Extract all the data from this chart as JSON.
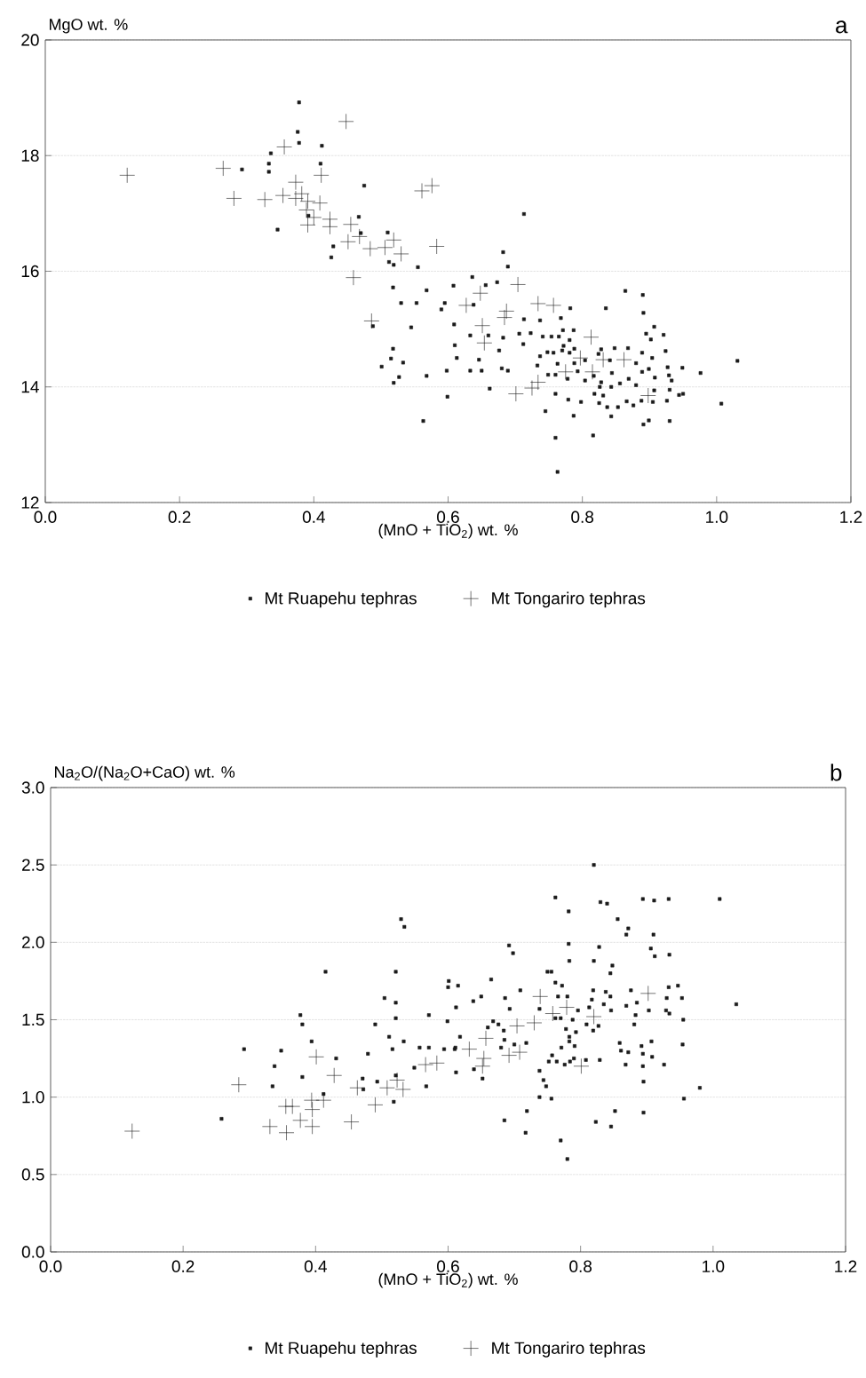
{
  "chart_data": [
    {
      "type": "scatter",
      "title": "a",
      "xlabel": "(MnO + TiO$_{2}$) wt. %",
      "ylabel": "MgO wt. %",
      "xlim": [
        0,
        1.2
      ],
      "ylim": [
        12,
        20
      ],
      "xticks": [
        {
          "value": 0,
          "label": "0.0"
        },
        {
          "value": 0.2,
          "label": "0.2"
        },
        {
          "value": 0.4,
          "label": "0.4"
        },
        {
          "value": 0.6,
          "label": "0.6"
        },
        {
          "value": 0.8,
          "label": "0.8"
        },
        {
          "value": 1.0,
          "label": "1.0"
        },
        {
          "value": 1.2,
          "label": "1.2"
        }
      ],
      "yticks": [
        12,
        14,
        16,
        18,
        20
      ],
      "grid": "y",
      "legend": "bottom",
      "series": [
        {
          "name": "Mt Ruapehu tephras",
          "color": "#1a1a1a",
          "marker": "square",
          "x": [
            0.378,
            0.376,
            0.378,
            0.412,
            0.336,
            0.333,
            0.41,
            0.293,
            0.333,
            0.475,
            0.392,
            0.346,
            0.467,
            0.47,
            0.51,
            0.429,
            0.426,
            0.512,
            0.519,
            0.555,
            0.518,
            0.568,
            0.53,
            0.553,
            0.59,
            0.488,
            0.545,
            0.518,
            0.515,
            0.533,
            0.501,
            0.527,
            0.568,
            0.519,
            0.563,
            0.713,
            0.682,
            0.689,
            0.636,
            0.608,
            0.656,
            0.673,
            0.595,
            0.638,
            0.864,
            0.89,
            0.891,
            0.835,
            0.782,
            0.609,
            0.682,
            0.713,
            0.737,
            0.768,
            0.771,
            0.787,
            0.706,
            0.723,
            0.712,
            0.741,
            0.754,
            0.765,
            0.781,
            0.633,
            0.66,
            0.61,
            0.613,
            0.646,
            0.676,
            0.633,
            0.65,
            0.598,
            0.68,
            0.689,
            0.662,
            0.599,
            0.737,
            0.748,
            0.757,
            0.77,
            0.772,
            0.781,
            0.788,
            0.733,
            0.749,
            0.76,
            0.763,
            0.788,
            0.793,
            0.804,
            0.778,
            0.804,
            0.817,
            0.76,
            0.779,
            0.798,
            0.745,
            0.787,
            0.76,
            0.816,
            0.818,
            0.826,
            0.828,
            0.831,
            0.825,
            0.837,
            0.843,
            0.843,
            0.853,
            0.856,
            0.844,
            0.824,
            0.828,
            0.848,
            0.841,
            0.868,
            0.88,
            0.869,
            0.88,
            0.866,
            0.876,
            0.888,
            0.889,
            0.899,
            0.889,
            0.904,
            0.895,
            0.902,
            0.907,
            0.921,
            0.924,
            0.908,
            0.907,
            0.905,
            0.926,
            0.927,
            0.929,
            0.933,
            0.93,
            0.944,
            0.95,
            0.949,
            0.976,
            1.031,
            1.007,
            0.899,
            0.891,
            0.93,
            0.763
          ],
          "values": [
            18.92,
            18.41,
            18.22,
            18.17,
            18.04,
            17.86,
            17.86,
            17.76,
            17.72,
            17.48,
            16.96,
            16.72,
            16.94,
            16.66,
            16.67,
            16.43,
            16.24,
            16.16,
            16.11,
            16.07,
            15.72,
            15.67,
            15.45,
            15.45,
            15.34,
            15.05,
            15.03,
            14.66,
            14.49,
            14.42,
            14.35,
            14.17,
            14.19,
            14.07,
            13.41,
            16.99,
            16.33,
            16.08,
            15.9,
            15.75,
            15.76,
            15.81,
            15.45,
            15.42,
            15.66,
            15.59,
            15.28,
            15.36,
            15.36,
            15.08,
            14.85,
            15.17,
            15.15,
            15.19,
            14.98,
            14.98,
            14.92,
            14.93,
            14.74,
            14.87,
            14.87,
            14.87,
            14.81,
            14.89,
            14.89,
            14.72,
            14.5,
            14.47,
            14.63,
            14.28,
            14.28,
            14.28,
            14.32,
            14.28,
            13.97,
            13.83,
            14.53,
            14.6,
            14.59,
            14.63,
            14.71,
            14.59,
            14.66,
            14.37,
            14.21,
            14.21,
            14.4,
            14.41,
            14.27,
            14.46,
            14.14,
            14.11,
            14.19,
            13.88,
            13.78,
            13.74,
            13.58,
            13.5,
            13.12,
            13.16,
            13.88,
            14.0,
            14.08,
            13.85,
            13.72,
            13.65,
            14.0,
            13.49,
            13.65,
            14.06,
            14.24,
            14.57,
            14.65,
            14.67,
            14.46,
            14.67,
            14.41,
            14.14,
            14.03,
            13.75,
            13.68,
            13.76,
            14.26,
            14.31,
            14.59,
            14.5,
            14.92,
            14.82,
            15.04,
            14.9,
            14.62,
            14.16,
            13.94,
            13.74,
            13.76,
            14.34,
            14.2,
            14.11,
            13.95,
            13.86,
            13.88,
            14.33,
            14.24,
            14.45,
            13.71,
            13.42,
            13.35,
            13.41,
            12.53
          ]
        },
        {
          "name": "Mt Tongariro tephras",
          "color": "#1a1a1a",
          "marker": "cross",
          "x": [
            0.122,
            0.265,
            0.281,
            0.327,
            0.356,
            0.354,
            0.373,
            0.373,
            0.382,
            0.391,
            0.389,
            0.409,
            0.411,
            0.4,
            0.391,
            0.424,
            0.424,
            0.448,
            0.455,
            0.451,
            0.468,
            0.484,
            0.459,
            0.506,
            0.519,
            0.53,
            0.486,
            0.561,
            0.576,
            0.583,
            0.648,
            0.627,
            0.704,
            0.687,
            0.684,
            0.651,
            0.654,
            0.734,
            0.757,
            0.813,
            0.797,
            0.831,
            0.862,
            0.775,
            0.815,
            0.734,
            0.725,
            0.701,
            0.898
          ],
          "values": [
            17.66,
            17.78,
            17.26,
            17.24,
            18.15,
            17.31,
            17.54,
            17.26,
            17.34,
            17.21,
            17.06,
            17.18,
            17.66,
            16.93,
            16.8,
            16.9,
            16.77,
            18.59,
            16.81,
            16.51,
            16.6,
            16.39,
            15.89,
            16.41,
            16.54,
            16.3,
            15.14,
            17.39,
            17.48,
            16.43,
            15.62,
            15.41,
            15.77,
            15.31,
            15.2,
            15.06,
            14.76,
            15.44,
            15.41,
            14.86,
            14.5,
            14.47,
            14.47,
            14.26,
            14.26,
            14.08,
            13.98,
            13.88,
            13.85
          ]
        }
      ]
    },
    {
      "type": "scatter",
      "title": "b",
      "xlabel": "(MnO + TiO$_{2}$) wt. %",
      "ylabel": "Na$_{2}$O/(Na$_{2}$O+CaO) wt. %",
      "xlim": [
        0,
        1.2
      ],
      "ylim": [
        0,
        3
      ],
      "xticks": [
        {
          "value": 0,
          "label": "0.0"
        },
        {
          "value": 0.2,
          "label": "0.2"
        },
        {
          "value": 0.4,
          "label": "0.4"
        },
        {
          "value": 0.6,
          "label": "0.6"
        },
        {
          "value": 0.8,
          "label": "0.8"
        },
        {
          "value": 1.0,
          "label": "1.0"
        },
        {
          "value": 1.2,
          "label": "1.2"
        }
      ],
      "yticks": [
        {
          "value": 0,
          "label": "0.0"
        },
        {
          "value": 0.5,
          "label": "0.5"
        },
        {
          "value": 1.0,
          "label": "1.0"
        },
        {
          "value": 1.5,
          "label": "1.5"
        },
        {
          "value": 2.0,
          "label": "2.0"
        },
        {
          "value": 2.5,
          "label": "2.5"
        },
        {
          "value": 3.0,
          "label": "3.0"
        }
      ],
      "grid": "y",
      "legend": "bottom",
      "series": [
        {
          "name": "Mt Ruapehu tephras",
          "color": "#1a1a1a",
          "marker": "square",
          "x": [
            0.529,
            0.534,
            0.415,
            0.521,
            0.292,
            0.258,
            0.335,
            0.338,
            0.348,
            0.377,
            0.38,
            0.394,
            0.38,
            0.412,
            0.431,
            0.471,
            0.472,
            0.479,
            0.49,
            0.493,
            0.504,
            0.511,
            0.516,
            0.518,
            0.521,
            0.521,
            0.533,
            0.521,
            0.549,
            0.557,
            0.571,
            0.567,
            0.571,
            0.594,
            0.599,
            0.6,
            0.601,
            0.611,
            0.612,
            0.612,
            0.82,
            0.762,
            0.782,
            0.83,
            0.84,
            0.894,
            0.911,
            0.933,
            1.01,
            0.856,
            0.872,
            0.869,
            0.91,
            0.692,
            0.698,
            0.782,
            0.828,
            0.906,
            0.912,
            0.934,
            0.783,
            0.82,
            0.848,
            0.845,
            0.75,
            0.756,
            0.665,
            0.615,
            0.762,
            0.772,
            0.709,
            0.819,
            0.838,
            0.876,
            0.933,
            0.947,
            1.035,
            0.65,
            0.638,
            0.686,
            0.766,
            0.78,
            0.817,
            0.845,
            0.885,
            0.93,
            0.953,
            0.869,
            0.693,
            0.738,
            0.796,
            0.813,
            0.835,
            0.846,
            0.903,
            0.929,
            0.883,
            0.934,
            0.668,
            0.676,
            0.762,
            0.77,
            0.788,
            0.809,
            0.827,
            0.881,
            0.955,
            0.66,
            0.684,
            0.778,
            0.793,
            0.819,
            0.618,
            0.685,
            0.783,
            0.783,
            0.859,
            0.907,
            0.718,
            0.7,
            0.61,
            0.68,
            0.771,
            0.791,
            0.892,
            0.954,
            0.861,
            0.872,
            0.894,
            0.757,
            0.908,
            0.752,
            0.764,
            0.776,
            0.784,
            0.79,
            0.808,
            0.829,
            0.868,
            0.894,
            0.926,
            0.639,
            0.652,
            0.738,
            0.744,
            0.748,
            0.895,
            0.98,
            0.738,
            0.756,
            0.956,
            0.719,
            0.685,
            0.717,
            0.77,
            0.823,
            0.846,
            0.852,
            0.895,
            0.78
          ],
          "values": [
            2.15,
            2.1,
            1.81,
            1.81,
            1.31,
            0.86,
            1.07,
            1.2,
            1.3,
            1.53,
            1.47,
            1.36,
            1.13,
            1.02,
            1.25,
            1.12,
            1.05,
            1.28,
            1.47,
            1.1,
            1.64,
            1.39,
            1.31,
            0.97,
            1.61,
            1.51,
            1.36,
            1.14,
            1.19,
            1.32,
            1.32,
            1.07,
            1.53,
            1.31,
            1.49,
            1.71,
            1.75,
            1.32,
            1.16,
            1.58,
            2.5,
            2.29,
            2.2,
            2.26,
            2.25,
            2.28,
            2.27,
            2.28,
            2.28,
            2.15,
            2.09,
            2.05,
            2.05,
            1.98,
            1.93,
            1.99,
            1.97,
            1.96,
            1.91,
            1.92,
            1.88,
            1.88,
            1.85,
            1.8,
            1.81,
            1.81,
            1.76,
            1.72,
            1.74,
            1.72,
            1.69,
            1.69,
            1.68,
            1.69,
            1.71,
            1.72,
            1.6,
            1.65,
            1.62,
            1.64,
            1.65,
            1.65,
            1.63,
            1.65,
            1.61,
            1.64,
            1.64,
            1.59,
            1.57,
            1.57,
            1.56,
            1.58,
            1.6,
            1.56,
            1.56,
            1.56,
            1.53,
            1.54,
            1.49,
            1.47,
            1.51,
            1.51,
            1.5,
            1.47,
            1.46,
            1.47,
            1.5,
            1.45,
            1.43,
            1.44,
            1.42,
            1.43,
            1.39,
            1.37,
            1.39,
            1.36,
            1.35,
            1.36,
            1.35,
            1.34,
            1.31,
            1.32,
            1.32,
            1.33,
            1.33,
            1.34,
            1.3,
            1.29,
            1.28,
            1.27,
            1.26,
            1.23,
            1.23,
            1.21,
            1.23,
            1.25,
            1.24,
            1.24,
            1.21,
            1.2,
            1.21,
            1.18,
            1.12,
            1.17,
            1.11,
            1.07,
            1.1,
            1.06,
            1.0,
            0.99,
            0.99,
            0.91,
            0.85,
            0.77,
            0.72,
            0.84,
            0.81,
            0.91,
            0.9,
            0.6
          ]
        },
        {
          "name": "Mt Tongariro tephras",
          "color": "#1a1a1a",
          "marker": "cross",
          "x": [
            0.123,
            0.284,
            0.331,
            0.356,
            0.355,
            0.365,
            0.377,
            0.394,
            0.395,
            0.395,
            0.412,
            0.401,
            0.428,
            0.454,
            0.463,
            0.49,
            0.508,
            0.523,
            0.532,
            0.566,
            0.583,
            0.632,
            0.657,
            0.654,
            0.652,
            0.692,
            0.708,
            0.704,
            0.73,
            0.739,
            0.758,
            0.779,
            0.82,
            0.801,
            0.902
          ],
          "values": [
            0.78,
            1.08,
            0.81,
            0.77,
            0.94,
            0.94,
            0.85,
            0.98,
            0.92,
            0.81,
            0.98,
            1.26,
            1.14,
            0.84,
            1.06,
            0.95,
            1.06,
            1.11,
            1.05,
            1.21,
            1.22,
            1.31,
            1.38,
            1.25,
            1.2,
            1.27,
            1.29,
            1.46,
            1.48,
            1.65,
            1.54,
            1.58,
            1.52,
            1.2,
            1.67
          ]
        }
      ]
    }
  ]
}
